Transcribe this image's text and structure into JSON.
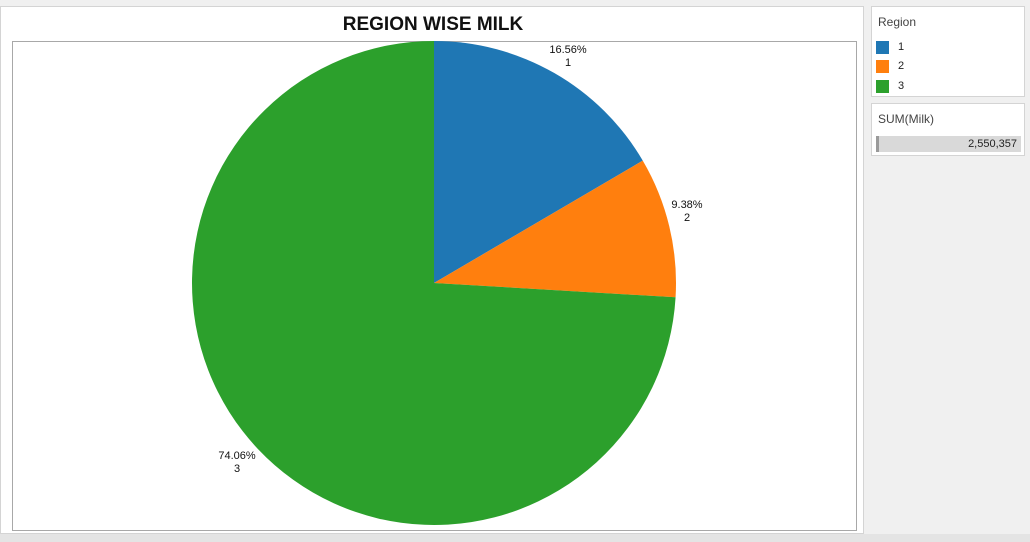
{
  "chart_data": {
    "type": "pie",
    "title": "REGION WISE MILK",
    "slices": [
      {
        "label": "1",
        "percent": 16.56,
        "percent_text": "16.56%",
        "color": "#1f77b4"
      },
      {
        "label": "2",
        "percent": 9.38,
        "percent_text": "9.38%",
        "color": "#ff7f0e"
      },
      {
        "label": "3",
        "percent": 74.06,
        "percent_text": "74.06%",
        "color": "#2ca02c"
      }
    ]
  },
  "legend": {
    "title": "Region",
    "items": [
      {
        "label": "1",
        "color": "#1f77b4"
      },
      {
        "label": "2",
        "color": "#ff7f0e"
      },
      {
        "label": "3",
        "color": "#2ca02c"
      }
    ]
  },
  "size_legend": {
    "title": "SUM(Milk)",
    "value": "2,550,357"
  }
}
